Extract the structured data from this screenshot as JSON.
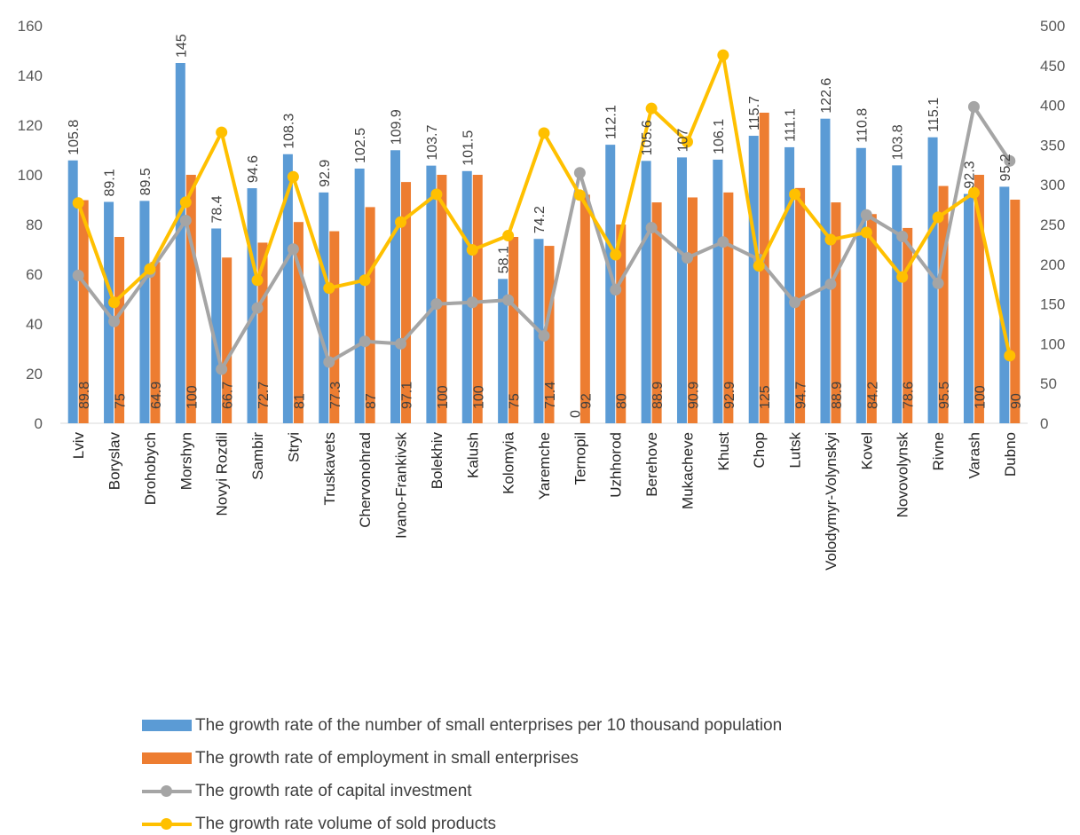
{
  "chart_data": {
    "type": "bar",
    "categories": [
      "Lviv",
      "Boryslav",
      "Drohobych",
      "Morshyn",
      "Novyi Rozdil",
      "Sambir",
      "Stryi",
      "Truskavets",
      "Chervonohrad",
      "Ivano-Frankivsk",
      "Bolekhiv",
      "Kalush",
      "Kolomyia",
      "Yaremche",
      "Ternopil",
      "Uzhhorod",
      "Berehove",
      "Mukacheve",
      "Khust",
      "Chop",
      "Lutsk",
      "Volodymyr-Volynskyi",
      "Kovel",
      "Novovolynsk",
      "Rivne",
      "Varash",
      "Dubno"
    ],
    "y_left": {
      "min": 0,
      "max": 160,
      "ticks": [
        0,
        20,
        40,
        60,
        80,
        100,
        120,
        140,
        160
      ]
    },
    "y_right": {
      "min": 0,
      "max": 500,
      "ticks": [
        0,
        50,
        100,
        150,
        200,
        250,
        300,
        350,
        400,
        450,
        500
      ]
    },
    "series": [
      {
        "name": "The growth rate of the number of small enterprises per 10 thousand population",
        "type": "bar",
        "axis": "left",
        "color": "#5B9BD5",
        "values": [
          105.8,
          89.1,
          89.5,
          145,
          78.4,
          94.6,
          108.3,
          92.9,
          102.5,
          109.9,
          103.7,
          101.5,
          58.1,
          74.2,
          0,
          112.1,
          105.6,
          107,
          106.1,
          115.7,
          111.1,
          122.6,
          110.8,
          103.8,
          115.1,
          92.3,
          95.2
        ],
        "labels": [
          "105.8",
          "89.1",
          "89.5",
          "145",
          "78.4",
          "94.6",
          "108.3",
          "92.9",
          "102.5",
          "109.9",
          "103.7",
          "101.5",
          "58.1",
          "74.2",
          "0",
          "112.1",
          "105.6",
          "107",
          "106.1",
          "115.7",
          "111.1",
          "122.6",
          "110.8",
          "103.8",
          "115.1",
          "92.3",
          "95.2"
        ]
      },
      {
        "name": "The growth rate of employment in small enterprises",
        "type": "bar",
        "axis": "left",
        "color": "#ED7D31",
        "values": [
          89.8,
          75,
          64.9,
          100,
          66.7,
          72.7,
          81,
          77.3,
          87,
          97.1,
          100,
          100,
          75,
          71.4,
          92,
          80,
          88.9,
          90.9,
          92.9,
          125,
          94.7,
          88.9,
          84.2,
          78.6,
          95.5,
          100,
          90
        ],
        "labels": [
          "89.8",
          "75",
          "64.9",
          "100",
          "66.7",
          "72.7",
          "81",
          "77.3",
          "87",
          "97.1",
          "100",
          "100",
          "75",
          "71.4",
          "92",
          "80",
          "88.9",
          "90.9",
          "92.9",
          "125",
          "94.7",
          "88.9",
          "84.2",
          "78.6",
          "95.5",
          "100",
          "90"
        ]
      },
      {
        "name": "The growth rate of capital investment",
        "type": "line",
        "axis": "right",
        "color": "#A5A5A5",
        "values": [
          186,
          128,
          190,
          255,
          68,
          145,
          219,
          77,
          103,
          100,
          150,
          152,
          155,
          110,
          315,
          168,
          246,
          208,
          228,
          206,
          152,
          175,
          262,
          235,
          176,
          398,
          330
        ]
      },
      {
        "name": "The growth rate volume of sold products",
        "type": "line",
        "axis": "right",
        "color": "#FFC000",
        "values": [
          277,
          152,
          194,
          278,
          366,
          180,
          310,
          170,
          180,
          253,
          288,
          218,
          236,
          365,
          287,
          212,
          396,
          354,
          463,
          198,
          288,
          231,
          240,
          184,
          259,
          290,
          85
        ]
      }
    ],
    "legend_position": "bottom"
  }
}
